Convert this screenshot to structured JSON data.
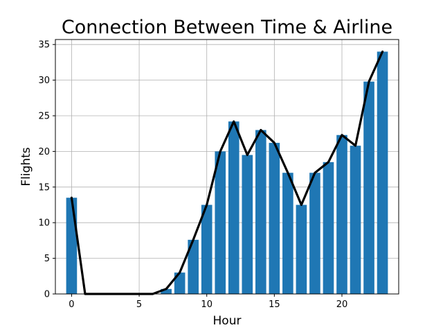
{
  "chart_data": {
    "type": "bar",
    "title": "Connection Between Time & Airline",
    "xlabel": "Hour",
    "ylabel": "Flights",
    "x": [
      0,
      1,
      2,
      3,
      4,
      5,
      6,
      7,
      8,
      9,
      10,
      11,
      12,
      13,
      14,
      15,
      16,
      17,
      18,
      19,
      20,
      21,
      22,
      23
    ],
    "values": [
      13.5,
      0,
      0,
      0,
      0,
      0,
      0,
      0.7,
      3.0,
      7.6,
      12.5,
      20.0,
      24.2,
      19.5,
      23.0,
      21.2,
      17.0,
      12.5,
      17.0,
      18.5,
      22.3,
      20.8,
      29.8,
      34.0
    ],
    "xlim": [
      -1.2,
      24.2
    ],
    "ylim": [
      0,
      35.7
    ],
    "xticks": [
      0,
      5,
      10,
      15,
      20
    ],
    "yticks": [
      0,
      5,
      10,
      15,
      20,
      25,
      30,
      35
    ],
    "grid": true,
    "colors": {
      "bar": "#1f77b4",
      "line": "#000000",
      "grid": "#b0b0b0"
    }
  }
}
